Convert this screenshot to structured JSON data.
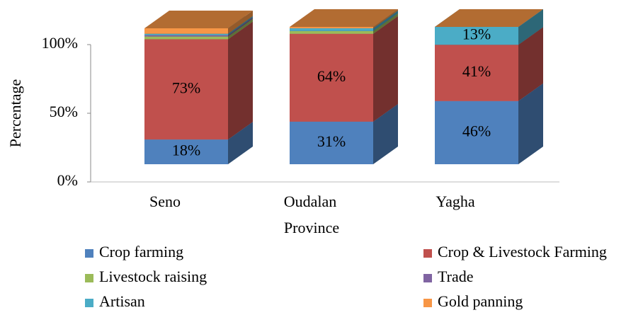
{
  "chart_data": {
    "type": "bar3d_stacked",
    "y_label": "Percentage",
    "x_label": "Province",
    "categories": [
      "Seno",
      "Oudalan",
      "Yagha"
    ],
    "ylim": [
      0,
      100
    ],
    "yticks": [
      {
        "value": 0,
        "label": "0%"
      },
      {
        "value": 50,
        "label": "50%"
      },
      {
        "value": 100,
        "label": "100%"
      }
    ],
    "series": [
      {
        "name": "Crop farming",
        "color": "#4f81bd",
        "values": [
          18,
          31,
          46
        ],
        "value_labels": [
          "18%",
          "31%",
          "46%"
        ]
      },
      {
        "name": "Crop & Livestock Farming",
        "color": "#c0504d",
        "values": [
          73,
          64,
          41
        ],
        "value_labels": [
          "73%",
          "64%",
          "41%"
        ]
      },
      {
        "name": "Livestock raising",
        "color": "#9bbb59",
        "values": [
          2,
          2,
          0
        ]
      },
      {
        "name": "Trade",
        "color": "#8064a2",
        "values": [
          1,
          0,
          0
        ]
      },
      {
        "name": "Artisan",
        "color": "#4bacc6",
        "values": [
          1,
          2,
          13
        ],
        "value_labels": [
          null,
          null,
          "13%"
        ]
      },
      {
        "name": "Gold panning",
        "color": "#f79646",
        "values": [
          4,
          1,
          0
        ]
      }
    ]
  }
}
